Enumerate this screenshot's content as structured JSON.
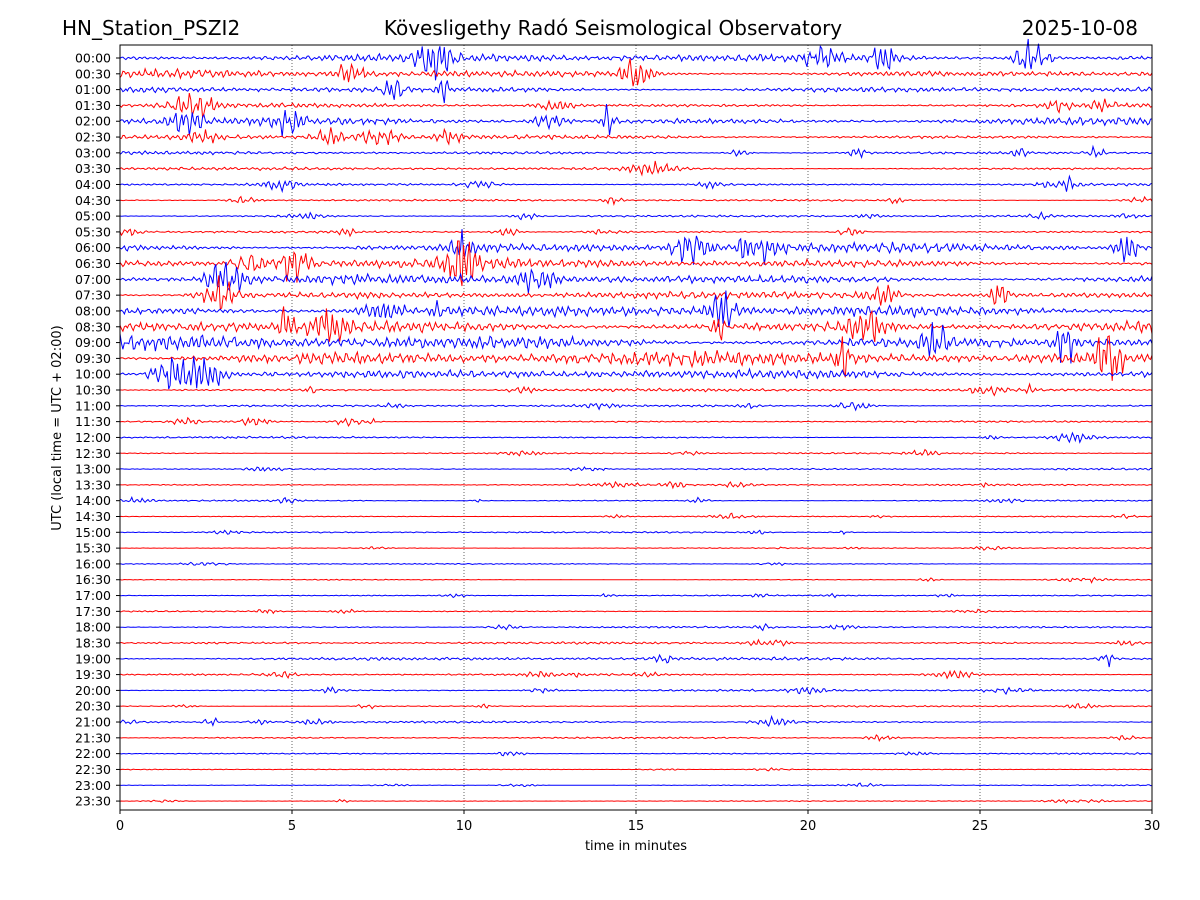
{
  "header": {
    "station": "HN_Station_PSZI2",
    "observatory": "Kövesligethy Radó Seismological Observatory",
    "date": "2025-10-08"
  },
  "chart_data": {
    "type": "line",
    "title": "Kövesligethy Radó Seismological Observatory",
    "xlabel": "time in minutes",
    "ylabel": "UTC (local time = UTC + 02:00)",
    "xlim": [
      0,
      30
    ],
    "x_ticks": [
      "0",
      "5",
      "10",
      "15",
      "20",
      "25",
      "30"
    ],
    "vertical_grid": true,
    "colors": [
      "#0000ff",
      "#ff0000"
    ],
    "series": [
      {
        "name": "00:00",
        "amplitude": 0.55
      },
      {
        "name": "00:30",
        "amplitude": 0.55
      },
      {
        "name": "01:00",
        "amplitude": 0.45
      },
      {
        "name": "01:30",
        "amplitude": 0.3
      },
      {
        "name": "02:00",
        "amplitude": 0.55
      },
      {
        "name": "02:30",
        "amplitude": 0.3
      },
      {
        "name": "03:00",
        "amplitude": 0.22
      },
      {
        "name": "03:30",
        "amplitude": 0.2
      },
      {
        "name": "04:00",
        "amplitude": 0.18
      },
      {
        "name": "04:30",
        "amplitude": 0.14
      },
      {
        "name": "05:00",
        "amplitude": 0.14
      },
      {
        "name": "05:30",
        "amplitude": 0.14
      },
      {
        "name": "06:00",
        "amplitude": 0.65
      },
      {
        "name": "06:30",
        "amplitude": 0.65
      },
      {
        "name": "07:00",
        "amplitude": 0.65
      },
      {
        "name": "07:30",
        "amplitude": 0.5
      },
      {
        "name": "08:00",
        "amplitude": 0.75
      },
      {
        "name": "08:30",
        "amplitude": 0.85
      },
      {
        "name": "09:00",
        "amplitude": 1.0
      },
      {
        "name": "09:30",
        "amplitude": 1.0
      },
      {
        "name": "10:00",
        "amplitude": 0.6
      },
      {
        "name": "10:30",
        "amplitude": 0.2
      },
      {
        "name": "11:00",
        "amplitude": 0.14
      },
      {
        "name": "11:30",
        "amplitude": 0.12
      },
      {
        "name": "12:00",
        "amplitude": 0.14
      },
      {
        "name": "12:30",
        "amplitude": 0.1
      },
      {
        "name": "13:00",
        "amplitude": 0.12
      },
      {
        "name": "13:30",
        "amplitude": 0.12
      },
      {
        "name": "14:00",
        "amplitude": 0.1
      },
      {
        "name": "14:30",
        "amplitude": 0.08
      },
      {
        "name": "15:00",
        "amplitude": 0.1
      },
      {
        "name": "15:30",
        "amplitude": 0.07
      },
      {
        "name": "16:00",
        "amplitude": 0.07
      },
      {
        "name": "16:30",
        "amplitude": 0.07
      },
      {
        "name": "17:00",
        "amplitude": 0.09
      },
      {
        "name": "17:30",
        "amplitude": 0.09
      },
      {
        "name": "18:00",
        "amplitude": 0.12
      },
      {
        "name": "18:30",
        "amplitude": 0.15
      },
      {
        "name": "19:00",
        "amplitude": 0.22
      },
      {
        "name": "19:30",
        "amplitude": 0.14
      },
      {
        "name": "20:00",
        "amplitude": 0.14
      },
      {
        "name": "20:30",
        "amplitude": 0.1
      },
      {
        "name": "21:00",
        "amplitude": 0.14
      },
      {
        "name": "21:30",
        "amplitude": 0.1
      },
      {
        "name": "22:00",
        "amplitude": 0.1
      },
      {
        "name": "22:30",
        "amplitude": 0.07
      },
      {
        "name": "23:00",
        "amplitude": 0.07
      },
      {
        "name": "23:30",
        "amplitude": 0.06
      }
    ]
  }
}
